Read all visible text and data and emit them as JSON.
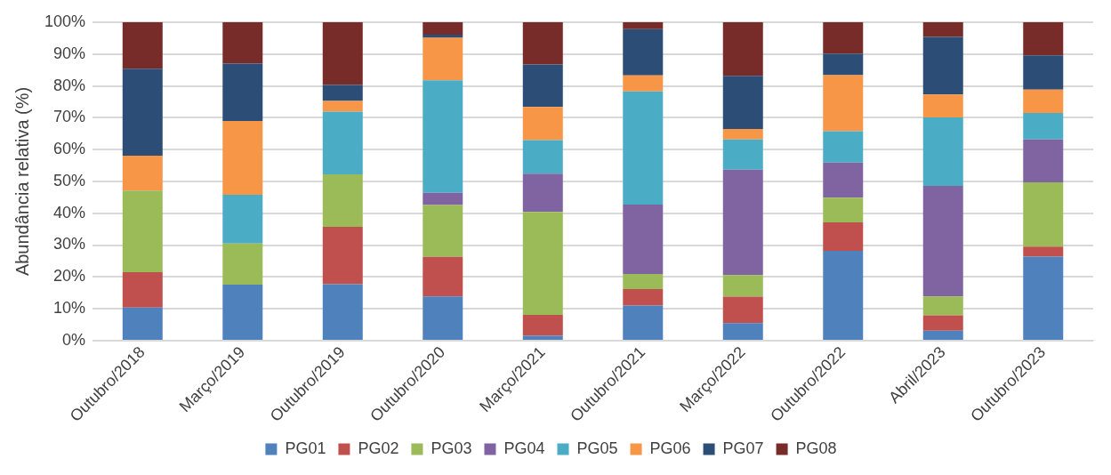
{
  "chart_data": {
    "type": "bar",
    "stacked": true,
    "ylabel": "Abundância relativa (%)",
    "categories": [
      "Outubro/2018",
      "Março/2019",
      "Outubro/2019",
      "Outubro/2020",
      "Março/2021",
      "Outubro/2021",
      "Março/2022",
      "Outubro/2022",
      "Abril/2023",
      "Outubro/2023"
    ],
    "series": [
      {
        "name": "PG01",
        "color": "#4f81bd",
        "values": [
          10.4,
          17.6,
          17.7,
          13.9,
          1.5,
          11.0,
          5.5,
          28.2,
          3.1,
          26.4
        ]
      },
      {
        "name": "PG02",
        "color": "#c0504d",
        "values": [
          11.1,
          0,
          18.0,
          12.4,
          6.6,
          5.2,
          8.3,
          8.9,
          4.8,
          3.1
        ]
      },
      {
        "name": "PG03",
        "color": "#9bbb59",
        "values": [
          25.6,
          12.9,
          16.5,
          16.3,
          32.3,
          4.7,
          6.8,
          7.8,
          6.0,
          20.2
        ]
      },
      {
        "name": "PG04",
        "color": "#8064a2",
        "values": [
          0,
          0,
          0,
          3.8,
          12.0,
          21.8,
          33.1,
          11.0,
          34.7,
          13.5
        ]
      },
      {
        "name": "PG05",
        "color": "#4bacc6",
        "values": [
          0,
          15.3,
          19.7,
          35.4,
          10.6,
          35.6,
          9.5,
          9.9,
          21.5,
          8.3
        ]
      },
      {
        "name": "PG06",
        "color": "#f79646",
        "values": [
          11.0,
          23.2,
          3.4,
          13.3,
          10.4,
          5.0,
          3.3,
          17.6,
          7.2,
          7.3
        ]
      },
      {
        "name": "PG07",
        "color": "#2c4d75",
        "values": [
          27.3,
          18.0,
          5.0,
          1.0,
          13.3,
          14.5,
          16.7,
          6.7,
          18.1,
          10.8
        ]
      },
      {
        "name": "PG08",
        "color": "#772c2a",
        "values": [
          14.7,
          13.0,
          19.7,
          3.9,
          13.3,
          2.2,
          16.8,
          9.9,
          4.6,
          10.4
        ]
      }
    ],
    "ylim": [
      0,
      100
    ],
    "yticks": [
      {
        "value": 0,
        "label": "0%"
      },
      {
        "value": 10,
        "label": "10%"
      },
      {
        "value": 20,
        "label": "20%"
      },
      {
        "value": 30,
        "label": "30%"
      },
      {
        "value": 40,
        "label": "40%"
      },
      {
        "value": 50,
        "label": "50%"
      },
      {
        "value": 60,
        "label": "60%"
      },
      {
        "value": 70,
        "label": "70%"
      },
      {
        "value": 80,
        "label": "80%"
      },
      {
        "value": 90,
        "label": "90%"
      },
      {
        "value": 100,
        "label": "100%"
      }
    ],
    "grid": "y",
    "legend": "bottom"
  }
}
